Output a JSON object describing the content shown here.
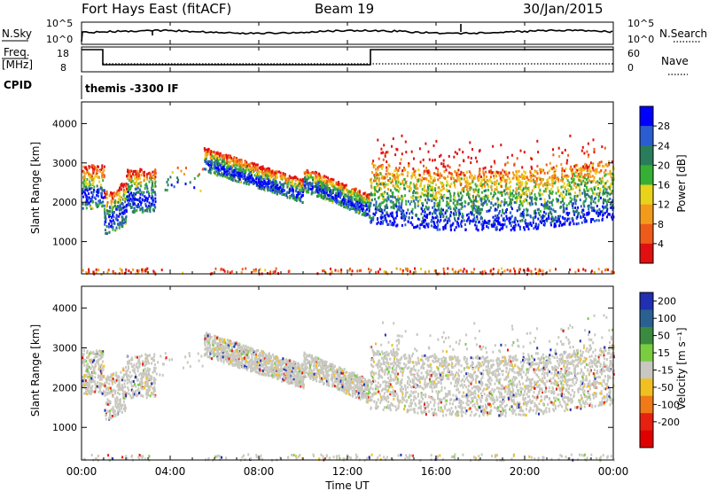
{
  "header": {
    "station": "Fort Hays East (fitACF)",
    "beam": "Beam 19",
    "date": "30/Jan/2015"
  },
  "noise_panel": {
    "left_label": "N.Sky",
    "right_label": "N.Search",
    "left_ticks": [
      "10^5",
      "10^0"
    ],
    "right_ticks": [
      "10^5",
      "10^0"
    ]
  },
  "freq_panel": {
    "left_label_line1": "Freq.",
    "left_label_line2": "[MHz]",
    "right_label": "Nave",
    "left_ticks": [
      "18",
      "8"
    ],
    "right_ticks": [
      "60",
      "0"
    ]
  },
  "cpid_panel": {
    "label": "CPID",
    "text": "themis -3300 IF"
  },
  "chart_data": [
    {
      "type": "heatmap",
      "title": "",
      "xlabel": "",
      "ylabel": "Slant Range [km]",
      "x_range_hours": [
        0,
        24
      ],
      "ylim": [
        180,
        4550
      ],
      "yticks": [
        "1000",
        "2000",
        "3000",
        "4000"
      ],
      "colorbar": {
        "label": "Power [dB]",
        "ticks": [
          "4",
          "8",
          "12",
          "16",
          "20",
          "24",
          "28"
        ],
        "colors": [
          "#0000ff",
          "#2b5cd0",
          "#2a7d5a",
          "#35b035",
          "#e8d21a",
          "#f29a1c",
          "#ee5a1a",
          "#e01010"
        ]
      }
    },
    {
      "type": "heatmap",
      "title": "",
      "xlabel": "Time UT",
      "ylabel": "Slant Range [km]",
      "x_range_hours": [
        0,
        24
      ],
      "ylim": [
        180,
        4550
      ],
      "yticks": [
        "1000",
        "2000",
        "3000",
        "4000"
      ],
      "xticks": [
        "00:00",
        "04:00",
        "08:00",
        "12:00",
        "16:00",
        "20:00",
        "00:00"
      ],
      "colorbar": {
        "label": "Velocity [m s⁻¹]",
        "ticks": [
          "200",
          "100",
          "50",
          "15",
          "-15",
          "-50",
          "-100",
          "-200"
        ],
        "colors": [
          "#2030b0",
          "#2a6090",
          "#3a8a40",
          "#7acc40",
          "#c8c8c0",
          "#f0c020",
          "#f07a18",
          "#e82010",
          "#e00000"
        ]
      }
    }
  ]
}
